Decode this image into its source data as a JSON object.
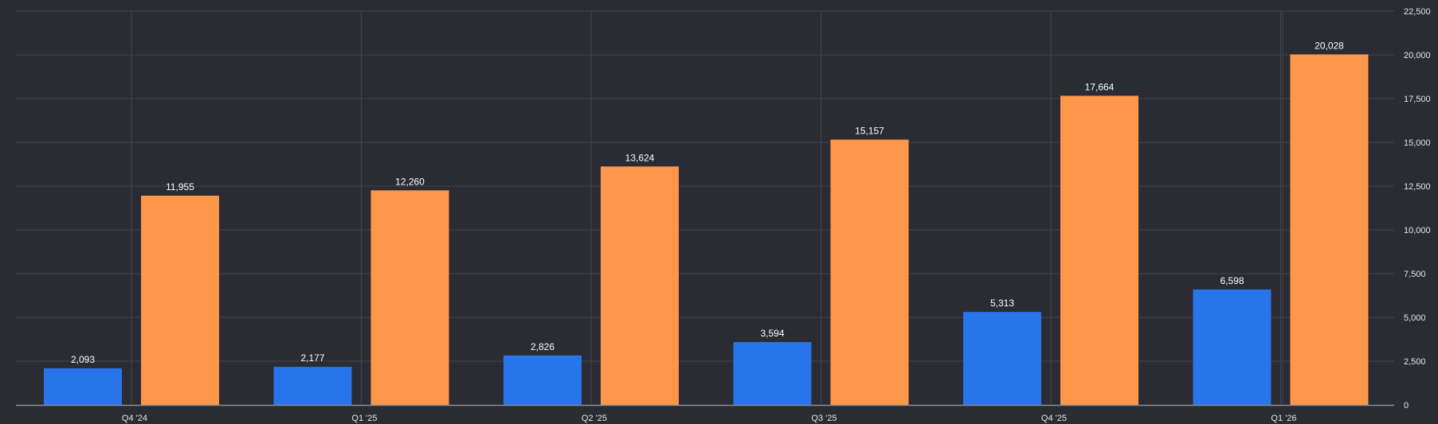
{
  "chart_data": {
    "type": "bar",
    "categories": [
      "Q4 '24",
      "Q1 '25",
      "Q2 '25",
      "Q3 '25",
      "Q4 '25",
      "Q1 '26"
    ],
    "series": [
      {
        "values": [
          2093,
          2177,
          2826,
          3594,
          5313,
          6598
        ],
        "value_labels": [
          "2,093",
          "2,177",
          "2,826",
          "3,594",
          "5,313",
          "6,598"
        ],
        "color": "#2874ea"
      },
      {
        "values": [
          11955,
          12260,
          13624,
          15157,
          17664,
          20028
        ],
        "value_labels": [
          "11,955",
          "12,260",
          "13,624",
          "15,157",
          "17,664",
          "20,028"
        ],
        "color": "#ff974a"
      }
    ],
    "ylim": [
      0,
      22500
    ],
    "yticks": [
      0,
      2500,
      5000,
      7500,
      10000,
      12500,
      15000,
      17500,
      20000,
      22500
    ],
    "ytick_labels": [
      "0",
      "2,500",
      "5,000",
      "7,500",
      "10,000",
      "12,500",
      "15,000",
      "17,500",
      "20,000",
      "22,500"
    ],
    "y_axis_side": "right",
    "grid": true,
    "legend": "none",
    "background": "#2a2b33",
    "gridline_color": "#44454d",
    "text_color": "#e6e6ea"
  }
}
